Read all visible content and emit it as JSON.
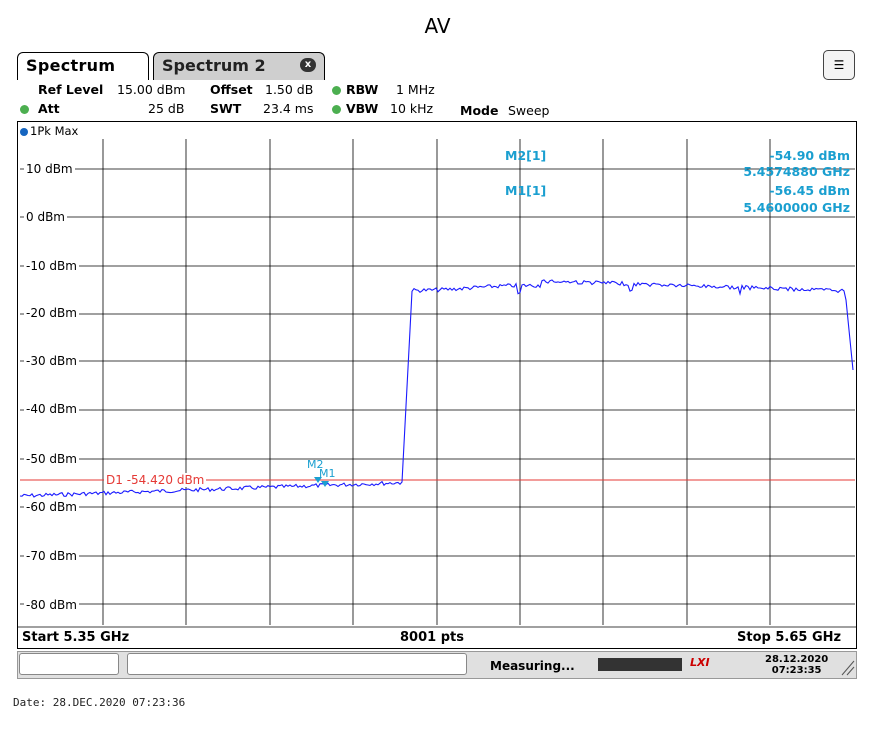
{
  "page_title": "AV",
  "tabs": [
    {
      "label": "Spectrum"
    },
    {
      "label": "Spectrum 2"
    }
  ],
  "tab_close_glyph": "x",
  "settings": {
    "ref_level_label": "Ref Level",
    "ref_level_value": "15.00 dBm",
    "offset_label": "Offset",
    "offset_value": "1.50 dB",
    "rbw_label": "RBW",
    "rbw_value": "1 MHz",
    "att_label": "Att",
    "att_value": "25 dB",
    "swt_label": "SWT",
    "swt_value": "23.4 ms",
    "vbw_label": "VBW",
    "vbw_value": "10 kHz",
    "mode_label": "Mode",
    "mode_value": "Sweep"
  },
  "trace": {
    "label": "1Pk Max",
    "color": "#1a1aff"
  },
  "y_axis": {
    "ticks": [
      "10 dBm",
      "0 dBm",
      "-10 dBm",
      "-20 dBm",
      "-30 dBm",
      "-40 dBm",
      "-50 dBm",
      "-60 dBm",
      "-70 dBm",
      "-80 dBm"
    ]
  },
  "markers": [
    {
      "name": "M2[1]",
      "level": "-54.90 dBm",
      "freq": "5.4574880 GHz"
    },
    {
      "name": "M1[1]",
      "level": "-56.45 dBm",
      "freq": "5.4600000 GHz"
    }
  ],
  "marker_tags": {
    "m2": "M2",
    "m1": "M1"
  },
  "display_line": {
    "label": "D1 -54.420 dBm",
    "color": "#e53935"
  },
  "footer": {
    "start": "Start 5.35 GHz",
    "points": "8001 pts",
    "stop": "Stop 5.65 GHz"
  },
  "status": {
    "measuring": "Measuring...",
    "date": "28.12.2020",
    "time": "07:23:35",
    "lxi": "LXI"
  },
  "date_footer": "Date: 28.DEC.2020  07:23:36",
  "colors": {
    "marker_text": "#1a9fd0",
    "trace": "#1a1aff",
    "display_line": "#e53935"
  }
}
